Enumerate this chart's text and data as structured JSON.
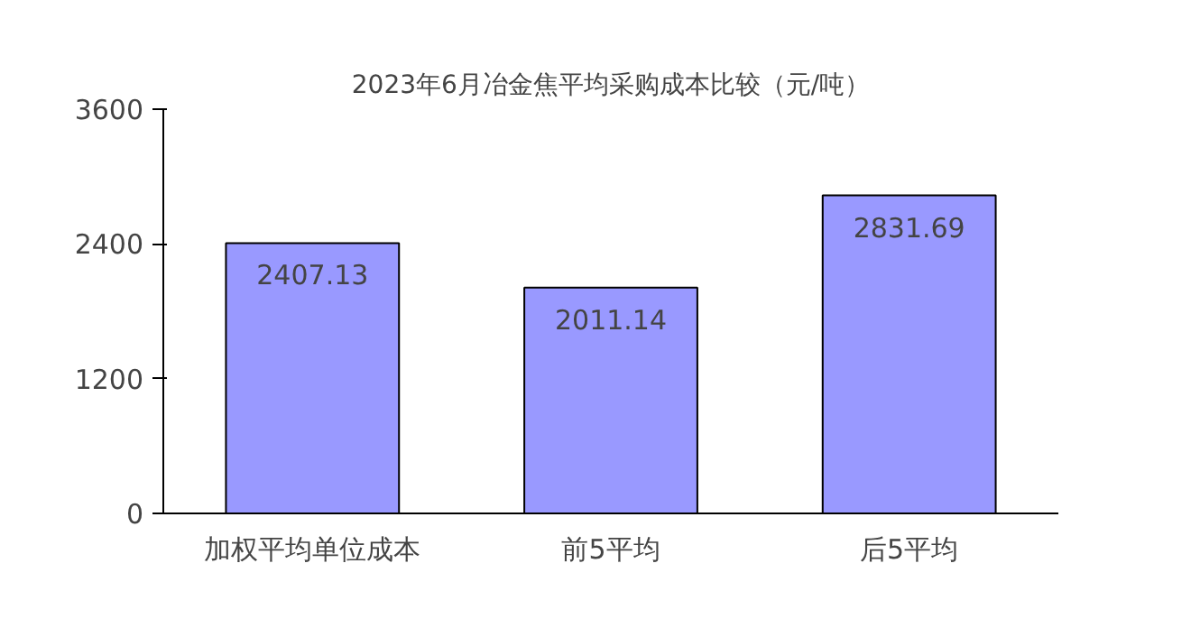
{
  "chart_data": {
    "type": "bar",
    "title": "2023年6月冶金焦平均采购成本比较（元/吨）",
    "categories": [
      "加权平均单位成本",
      "前5平均",
      "后5平均"
    ],
    "values": [
      2407.13,
      2011.14,
      2831.69
    ],
    "color": "#9999ff",
    "ylim": [
      0,
      3600
    ],
    "yticks": [
      0,
      1200,
      2400,
      3600
    ],
    "grid": false,
    "data_labels": true
  }
}
